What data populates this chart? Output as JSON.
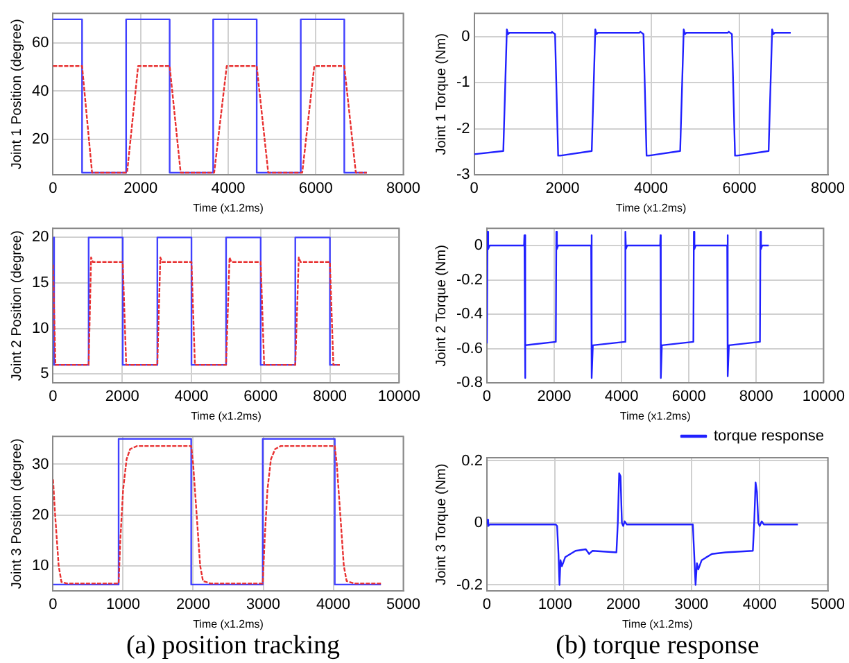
{
  "chart_data": [
    {
      "type": "line",
      "xlabel": "Time (x1.2ms)",
      "ylabel": "Joint 1 Position (degree)",
      "xlim": [
        0,
        8000
      ],
      "xticks": [
        0,
        2000,
        4000,
        6000,
        8000
      ],
      "ylim": [
        5,
        72.5
      ],
      "yticks": [
        20,
        40,
        60
      ],
      "grid": true,
      "legend": false,
      "marker": "none",
      "series": [
        {
          "color": "#4040ff",
          "line_style": "solid",
          "x": [
            0,
            663,
            663,
            1669,
            1669,
            2663,
            2663,
            3657,
            3657,
            4651,
            4651,
            5657,
            5657,
            6651,
            6651,
            7166
          ],
          "values": [
            70,
            70,
            6,
            6,
            70,
            70,
            6,
            6,
            70,
            70,
            6,
            6,
            70,
            70,
            6,
            6
          ]
        },
        {
          "color": "#e83030",
          "line_style": "dashed",
          "x": [
            0,
            663,
            891,
            1691,
            1943,
            2663,
            2914,
            3680,
            3966,
            4651,
            4914,
            5691,
            5966,
            6651,
            6914,
            7166
          ],
          "values": [
            50.5,
            50.5,
            6,
            6,
            50.5,
            50.5,
            6,
            6,
            50.5,
            50.5,
            6,
            6,
            50.5,
            50.5,
            6,
            6
          ]
        }
      ]
    },
    {
      "type": "line",
      "xlabel": "Time (x1.2ms)",
      "ylabel": "Joint 1 Torque (Nm)",
      "xlim": [
        0,
        8000
      ],
      "xticks": [
        0,
        2000,
        4000,
        6000,
        8000
      ],
      "ylim": [
        -3,
        0.5
      ],
      "yticks": [
        -3,
        -2,
        -1,
        0
      ],
      "grid": true,
      "legend": false,
      "marker": "none",
      "series": [
        {
          "color": "#2020ff",
          "line_style": "solid",
          "x": [
            0,
            660,
            740,
            770,
            800,
            1740,
            1760,
            1830,
            1900,
            1950,
            2660,
            2740,
            2770,
            2800,
            3740,
            3760,
            3830,
            3900,
            3950,
            4660,
            4740,
            4770,
            4800,
            5740,
            5760,
            5830,
            5900,
            5950,
            6660,
            6740,
            6770,
            6800,
            7160
          ],
          "values": [
            -2.55,
            -2.48,
            0.15,
            0.05,
            0.08,
            0.08,
            0.1,
            0.05,
            -2.58,
            -2.58,
            -2.48,
            0.15,
            0.05,
            0.08,
            0.08,
            0.1,
            0.05,
            -2.58,
            -2.58,
            -2.48,
            0.15,
            0.05,
            0.08,
            0.08,
            0.1,
            0.05,
            -2.58,
            -2.58,
            -2.48,
            0.15,
            0.05,
            0.08,
            0.08
          ]
        }
      ]
    },
    {
      "type": "line",
      "xlabel": "Time (x1.2ms)",
      "ylabel": "Joint 2 Position (degree)",
      "xlim": [
        0,
        10000
      ],
      "xticks": [
        0,
        2000,
        4000,
        6000,
        8000,
        10000
      ],
      "ylim": [
        4,
        21
      ],
      "yticks": [
        5,
        10,
        15,
        20
      ],
      "grid": true,
      "legend": false,
      "marker": "none",
      "series": [
        {
          "color": "#4040ff",
          "line_style": "solid",
          "x": [
            0,
            30,
            30,
            1029,
            1029,
            2014,
            2014,
            3014,
            3014,
            4000,
            4000,
            5000,
            5000,
            6000,
            6000,
            7000,
            7000,
            8000,
            8000,
            8286
          ],
          "values": [
            20,
            20,
            6,
            6,
            20,
            20,
            6,
            6,
            20,
            20,
            6,
            6,
            20,
            20,
            6,
            6,
            20,
            20,
            6,
            6
          ]
        },
        {
          "color": "#e83030",
          "line_style": "dashed",
          "x": [
            0,
            70,
            1029,
            1100,
            1150,
            2014,
            2114,
            3014,
            3100,
            3150,
            4000,
            4100,
            5000,
            5100,
            5150,
            6000,
            6100,
            7000,
            7100,
            7150,
            8000,
            8100,
            8286
          ],
          "values": [
            17,
            6,
            6,
            17.8,
            17.3,
            17.3,
            6,
            6,
            17.8,
            17.3,
            17.3,
            6,
            6,
            17.8,
            17.3,
            17.3,
            6,
            6,
            17.8,
            17.3,
            17.3,
            6,
            6
          ]
        }
      ]
    },
    {
      "type": "line",
      "xlabel": "Time (x1.2ms)",
      "ylabel": "Joint 2 Torque (Nm)",
      "xlim": [
        0,
        10000
      ],
      "xticks": [
        0,
        2000,
        4000,
        6000,
        8000,
        10000
      ],
      "ylim": [
        -0.8,
        0.1
      ],
      "yticks": [
        -0.8,
        -0.6,
        -0.4,
        -0.2,
        0
      ],
      "grid": true,
      "legend": false,
      "marker": "none",
      "series": [
        {
          "color": "#2020ff",
          "line_style": "solid",
          "x": [
            0,
            20,
            40,
            80,
            1105,
            1115,
            1125,
            1155,
            2048,
            2063,
            2080,
            2115,
            3097,
            3107,
            3117,
            3147,
            4098,
            4113,
            4130,
            4165,
            5146,
            5156,
            5166,
            5196,
            6132,
            6147,
            6164,
            6199,
            7137,
            7147,
            7157,
            7187,
            8109,
            8124,
            8141,
            8176,
            8370
          ],
          "values": [
            -0.57,
            0.08,
            -0.02,
            0,
            0,
            0.06,
            -0.77,
            -0.58,
            -0.56,
            0.08,
            -0.02,
            0,
            0,
            0.06,
            -0.77,
            -0.58,
            -0.56,
            0.08,
            -0.02,
            0,
            0,
            0.06,
            -0.77,
            -0.58,
            -0.56,
            0.08,
            -0.02,
            0,
            0,
            0.06,
            -0.76,
            -0.58,
            -0.56,
            0.08,
            -0.02,
            0,
            0
          ]
        }
      ]
    },
    {
      "type": "line",
      "xlabel": "Time (x1.2ms)",
      "ylabel": "Joint 3 Position (degree)",
      "xlim": [
        0,
        5000
      ],
      "xticks": [
        0,
        1000,
        2000,
        3000,
        4000,
        5000
      ],
      "ylim": [
        5,
        35.5
      ],
      "yticks": [
        10,
        20,
        30
      ],
      "grid": true,
      "legend": false,
      "marker": "none",
      "annotations": [
        "(a) position tracking"
      ],
      "series": [
        {
          "color": "#4040ff",
          "line_style": "solid",
          "x": [
            0,
            936,
            936,
            1972,
            1972,
            2993,
            2993,
            4021,
            4021,
            4680
          ],
          "values": [
            6.3,
            6.3,
            35,
            35,
            6.3,
            6.3,
            35,
            35,
            6.3,
            6.3
          ]
        },
        {
          "color": "#e83030",
          "line_style": "dashed",
          "x": [
            0,
            30,
            80,
            120,
            200,
            936,
            960,
            1000,
            1050,
            1100,
            1200,
            1972,
            2000,
            2050,
            2100,
            2140,
            2250,
            2993,
            3020,
            3060,
            3110,
            3170,
            3250,
            4021,
            4050,
            4100,
            4150,
            4190,
            4300,
            4680
          ],
          "values": [
            27,
            20,
            10,
            6.8,
            6.5,
            6.5,
            15,
            25,
            31,
            33,
            33.6,
            33.6,
            30,
            20,
            10,
            7,
            6.5,
            6.5,
            15,
            25,
            31,
            33,
            33.6,
            33.6,
            30,
            20,
            10,
            7,
            6.5,
            6.5
          ]
        }
      ]
    },
    {
      "type": "line",
      "xlabel": "Time (x1.2ms)",
      "ylabel": "Joint 3 Torque (Nm)",
      "xlim": [
        0,
        5000
      ],
      "xticks": [
        0,
        1000,
        2000,
        3000,
        4000,
        5000
      ],
      "ylim": [
        -0.22,
        0.21
      ],
      "yticks": [
        -0.2,
        0,
        0.2
      ],
      "grid": true,
      "legend": "top right",
      "marker": "none",
      "annotations": [
        "(b) torque response"
      ],
      "series": [
        {
          "name": "torque response",
          "color": "#2020ff",
          "line_style": "solid",
          "x": [
            0,
            10,
            20,
            40,
            1010,
            1030,
            1050,
            1065,
            1080,
            1100,
            1150,
            1300,
            1450,
            1500,
            1550,
            1900,
            1920,
            1940,
            1960,
            1980,
            2000,
            2020,
            2050,
            3020,
            3040,
            3060,
            3080,
            3100,
            3150,
            3300,
            3500,
            3900,
            3920,
            3940,
            3960,
            3980,
            4000,
            4030,
            4060,
            4560
          ],
          "values": [
            -0.005,
            0.01,
            -0.01,
            -0.005,
            -0.005,
            -0.01,
            -0.1,
            -0.2,
            -0.12,
            -0.14,
            -0.11,
            -0.09,
            -0.085,
            -0.1,
            -0.09,
            -0.095,
            0,
            0.16,
            0.15,
            0,
            -0.01,
            0.005,
            -0.005,
            -0.005,
            -0.1,
            -0.2,
            -0.13,
            -0.15,
            -0.12,
            -0.1,
            -0.095,
            -0.09,
            0,
            0.13,
            0.1,
            0,
            -0.01,
            0.005,
            -0.005,
            -0.005
          ]
        }
      ]
    }
  ]
}
